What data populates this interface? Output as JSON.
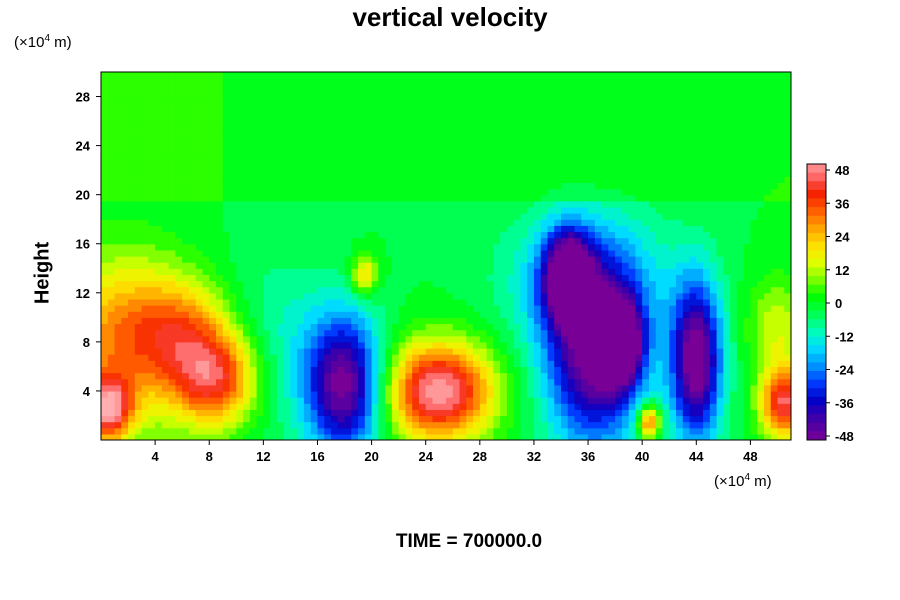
{
  "chart_data": {
    "type": "heatmap",
    "title": "vertical velocity",
    "ylabel": "Height",
    "unit_prefix": "(×10",
    "unit_exp": "4",
    "unit_suffix": " m)",
    "x_ticks": [
      4,
      8,
      12,
      16,
      20,
      24,
      28,
      32,
      36,
      40,
      44,
      48
    ],
    "y_ticks": [
      4,
      8,
      12,
      16,
      20,
      24,
      28
    ],
    "xlim": [
      0,
      51
    ],
    "ylim": [
      0,
      30
    ],
    "colorbar": {
      "ticks": [
        48,
        36,
        24,
        12,
        0,
        -12,
        -24,
        -36,
        -48
      ],
      "range": [
        -48,
        48
      ]
    },
    "features": [
      {
        "x": 1.5,
        "y": 8.0,
        "value": 30,
        "sx": 3.5,
        "sy": 5.0
      },
      {
        "x": 6.0,
        "y": 9.0,
        "value": 22,
        "sx": 2.5,
        "sy": 3.0
      },
      {
        "x": 8.5,
        "y": 5.0,
        "value": 40,
        "sx": 2.2,
        "sy": 2.8
      },
      {
        "x": 0.5,
        "y": 2.5,
        "value": 42,
        "sx": 1.2,
        "sy": 1.8
      },
      {
        "x": 18.0,
        "y": 4.5,
        "value": -46,
        "sx": 2.0,
        "sy": 4.0
      },
      {
        "x": 19.5,
        "y": 13.5,
        "value": 24,
        "sx": 0.7,
        "sy": 1.2
      },
      {
        "x": 25.0,
        "y": 4.0,
        "value": 52,
        "sx": 2.8,
        "sy": 2.8
      },
      {
        "x": 34.5,
        "y": 13.5,
        "value": -46,
        "sx": 1.2,
        "sy": 2.5
      },
      {
        "x": 36.5,
        "y": 6.5,
        "value": -44,
        "sx": 2.5,
        "sy": 5.0
      },
      {
        "x": 38.5,
        "y": 8.0,
        "value": -46,
        "sx": 1.0,
        "sy": 2.2
      },
      {
        "x": 40.5,
        "y": 1.5,
        "value": 38,
        "sx": 0.6,
        "sy": 1.0
      },
      {
        "x": 44.0,
        "y": 6.5,
        "value": -50,
        "sx": 1.3,
        "sy": 4.5
      },
      {
        "x": 50.5,
        "y": 3.0,
        "value": 44,
        "sx": 1.2,
        "sy": 2.0
      },
      {
        "x": 50.0,
        "y": 9.0,
        "value": 16,
        "sx": 1.5,
        "sy": 3.0
      },
      {
        "x": 36.0,
        "y": 13.0,
        "value": -20,
        "sx": 4.0,
        "sy": 4.0
      },
      {
        "x": 13.0,
        "y": 8.0,
        "value": -8,
        "sx": 3.0,
        "sy": 5.0
      }
    ],
    "background_value": 2
  },
  "footer": {
    "time_label": "TIME = 700000.0"
  }
}
